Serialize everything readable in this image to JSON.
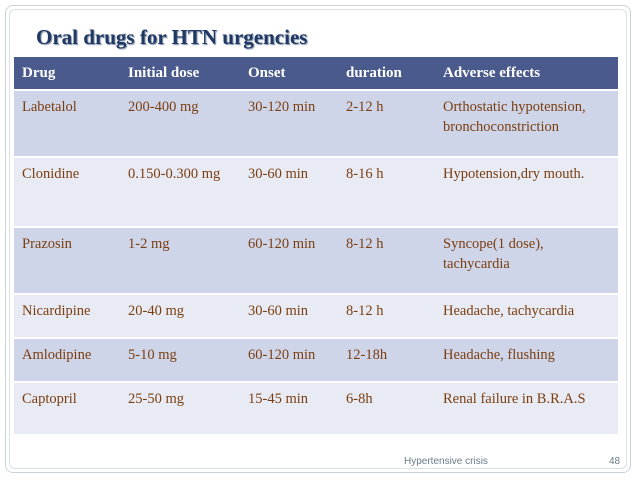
{
  "title": "Oral drugs for HTN urgencies",
  "table": {
    "headers": [
      "Drug",
      "Initial dose",
      "Onset",
      "duration",
      "Adverse effects"
    ],
    "rows": [
      [
        "Labetalol",
        "200-400 mg",
        "30-120 min",
        "2-12 h",
        "Orthostatic hypotension, bronchoconstriction"
      ],
      [
        "Clonidine",
        "0.150-0.300 mg",
        "30-60 min",
        "8-16 h",
        "Hypotension,dry mouth."
      ],
      [
        "Prazosin",
        "1-2 mg",
        "60-120 min",
        "8-12 h",
        "Syncope(1 dose), tachycardia"
      ],
      [
        "Nicardipine",
        "20-40 mg",
        "30-60 min",
        "8-12 h",
        "Headache, tachycardia"
      ],
      [
        "Amlodipine",
        "5-10 mg",
        "60-120 min",
        "12-18h",
        "Headache, flushing"
      ],
      [
        "Captopril",
        "25-50 mg",
        "15-45 min",
        "6-8h",
        "Renal failure in B.R.A.S"
      ]
    ]
  },
  "footer": {
    "label": "Hypertensive crisis",
    "page_number": "48"
  },
  "colors": {
    "header_bg": "#4a5a8c",
    "row_odd": "#cfd5e9",
    "row_even": "#e8ebf4",
    "cell_text": "#7a3d10",
    "title_text": "#1f3864"
  }
}
